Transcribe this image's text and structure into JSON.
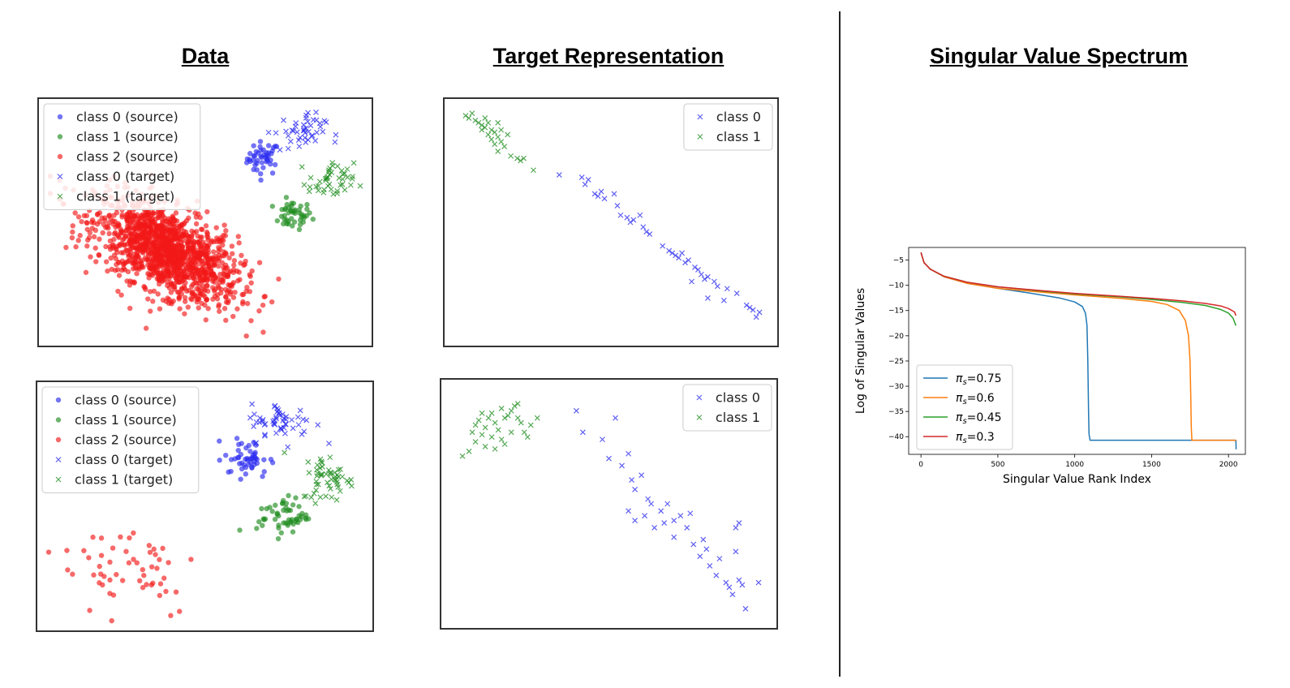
{
  "headings": {
    "data": "Data",
    "target_representation": "Target Representation",
    "spectrum": "Singular Value Spectrum"
  },
  "colors": {
    "blue": "#2a2af0",
    "green": "#1e8c1e",
    "red": "#f21818"
  },
  "chart_data": [
    {
      "id": "data-top",
      "type": "scatter",
      "legend": [
        "class 0 (source)",
        "class 1 (source)",
        "class 2 (source)",
        "class 0 (target)",
        "class 1 (target)"
      ],
      "legend_position": "top-left",
      "xlim": [
        0,
        100
      ],
      "ylim": [
        0,
        100
      ],
      "series": [
        {
          "name": "class 0 (source)",
          "marker": "o",
          "color": "#2a2af0",
          "cluster": {
            "center": [
              68,
              77
            ],
            "spread": [
              2.5,
              3.5
            ],
            "n": 45
          }
        },
        {
          "name": "class 1 (source)",
          "marker": "o",
          "color": "#1e8c1e",
          "cluster": {
            "center": [
              77,
              53
            ],
            "spread": [
              3,
              3
            ],
            "n": 45
          }
        },
        {
          "name": "class 2 (source)",
          "marker": "o",
          "color": "#f21818",
          "cluster": {
            "center": [
              38,
              38
            ],
            "spread": [
              11,
              9
            ],
            "n": 1400,
            "tilt": -0.55
          }
        },
        {
          "name": "class 0 (target)",
          "marker": "x",
          "color": "#2a2af0",
          "cluster": {
            "center": [
              79,
              88
            ],
            "spread": [
              4,
              4
            ],
            "n": 45
          }
        },
        {
          "name": "class 1 (target)",
          "marker": "x",
          "color": "#1e8c1e",
          "cluster": {
            "center": [
              89,
              67
            ],
            "spread": [
              3.5,
              4
            ],
            "n": 45
          }
        }
      ]
    },
    {
      "id": "data-bottom",
      "type": "scatter",
      "legend": [
        "class 0 (source)",
        "class 1 (source)",
        "class 2 (source)",
        "class 0 (target)",
        "class 1 (target)"
      ],
      "legend_position": "top-left",
      "xlim": [
        0,
        100
      ],
      "ylim": [
        0,
        100
      ],
      "series": [
        {
          "name": "class 0 (source)",
          "marker": "o",
          "color": "#2a2af0",
          "cluster": {
            "center": [
              63,
              70
            ],
            "spread": [
              3.5,
              4
            ],
            "n": 50
          }
        },
        {
          "name": "class 1 (source)",
          "marker": "o",
          "color": "#1e8c1e",
          "cluster": {
            "center": [
              74,
              46
            ],
            "spread": [
              4,
              4
            ],
            "n": 55
          }
        },
        {
          "name": "class 2 (source)",
          "marker": "o",
          "color": "#f21818",
          "cluster": {
            "center": [
              27,
              25
            ],
            "spread": [
              11,
              11
            ],
            "n": 55
          }
        },
        {
          "name": "class 0 (target)",
          "marker": "x",
          "color": "#2a2af0",
          "cluster": {
            "center": [
              74,
              85
            ],
            "spread": [
              5,
              4
            ],
            "n": 55
          }
        },
        {
          "name": "class 1 (target)",
          "marker": "x",
          "color": "#1e8c1e",
          "cluster": {
            "center": [
              88,
              62
            ],
            "spread": [
              4,
              5
            ],
            "n": 55
          }
        }
      ]
    },
    {
      "id": "target-top",
      "type": "scatter",
      "legend": [
        "class 0",
        "class 1"
      ],
      "legend_position": "top-right",
      "xlim": [
        0,
        100
      ],
      "ylim": [
        0,
        100
      ],
      "series": [
        {
          "name": "class 1",
          "marker": "x",
          "color": "#1e8c1e",
          "points": [
            [
              5,
              95
            ],
            [
              6,
              94
            ],
            [
              8,
              93
            ],
            [
              9,
              92
            ],
            [
              10,
              91
            ],
            [
              11,
              90
            ],
            [
              12,
              92
            ],
            [
              13,
              89
            ],
            [
              12,
              87
            ],
            [
              14,
              88
            ],
            [
              15,
              86
            ],
            [
              13,
              85
            ],
            [
              16,
              84
            ],
            [
              14,
              83
            ],
            [
              17,
              82
            ],
            [
              15,
              80
            ],
            [
              19,
              78
            ],
            [
              21,
              77
            ],
            [
              22,
              76
            ],
            [
              23,
              77
            ],
            [
              26,
              72
            ],
            [
              11,
              94
            ],
            [
              16,
              89
            ],
            [
              18,
              87
            ],
            [
              7,
              96
            ],
            [
              10,
              89
            ],
            [
              15,
              92
            ]
          ]
        },
        {
          "name": "class 0",
          "marker": "x",
          "color": "#2a2af0",
          "points": [
            [
              34,
              70
            ],
            [
              41,
              69
            ],
            [
              42,
              66
            ],
            [
              45,
              62
            ],
            [
              46,
              61
            ],
            [
              48,
              60
            ],
            [
              51,
              62
            ],
            [
              53,
              53
            ],
            [
              55,
              52
            ],
            [
              56,
              50
            ],
            [
              57,
              51
            ],
            [
              59,
              53
            ],
            [
              61,
              46
            ],
            [
              62,
              45
            ],
            [
              68,
              38
            ],
            [
              69,
              37
            ],
            [
              70,
              36
            ],
            [
              71,
              35
            ],
            [
              72,
              37
            ],
            [
              73,
              33
            ],
            [
              74,
              34
            ],
            [
              76,
              31
            ],
            [
              77,
              30
            ],
            [
              78,
              28
            ],
            [
              79,
              26
            ],
            [
              80,
              27
            ],
            [
              82,
              25
            ],
            [
              83,
              23
            ],
            [
              86,
              22
            ],
            [
              89,
              20
            ],
            [
              92,
              15
            ],
            [
              93,
              14
            ],
            [
              94,
              13
            ],
            [
              95,
              10
            ],
            [
              96,
              12
            ],
            [
              75,
              25
            ],
            [
              80,
              18
            ],
            [
              85,
              17
            ],
            [
              66,
              40
            ],
            [
              60,
              48
            ],
            [
              52,
              57
            ],
            [
              47,
              63
            ],
            [
              43,
              68
            ]
          ]
        }
      ]
    },
    {
      "id": "target-bottom",
      "type": "scatter",
      "legend": [
        "class 0",
        "class 1"
      ],
      "legend_position": "top-right",
      "xlim": [
        0,
        100
      ],
      "ylim": [
        0,
        100
      ],
      "series": [
        {
          "name": "class 1",
          "marker": "x",
          "color": "#1e8c1e",
          "points": [
            [
              5,
              70
            ],
            [
              7,
              72
            ],
            [
              8,
              80
            ],
            [
              9,
              83
            ],
            [
              10,
              85
            ],
            [
              11,
              79
            ],
            [
              12,
              82
            ],
            [
              13,
              86
            ],
            [
              14,
              88
            ],
            [
              15,
              84
            ],
            [
              16,
              81
            ],
            [
              17,
              77
            ],
            [
              18,
              75
            ],
            [
              19,
              87
            ],
            [
              20,
              89
            ],
            [
              21,
              91
            ],
            [
              22,
              86
            ],
            [
              23,
              84
            ],
            [
              24,
              80
            ],
            [
              25,
              78
            ],
            [
              9,
              76
            ],
            [
              12,
              74
            ],
            [
              15,
              73
            ],
            [
              18,
              86
            ],
            [
              20,
              80
            ],
            [
              26,
              83
            ],
            [
              28,
              86
            ],
            [
              11,
              88
            ],
            [
              14,
              78
            ],
            [
              17,
              90
            ],
            [
              22,
              92
            ]
          ]
        },
        {
          "name": "class 0",
          "marker": "x",
          "color": "#2a2af0",
          "points": [
            [
              40,
              89
            ],
            [
              42,
              80
            ],
            [
              48,
              77
            ],
            [
              52,
              86
            ],
            [
              54,
              66
            ],
            [
              57,
              60
            ],
            [
              50,
              69
            ],
            [
              56,
              71
            ],
            [
              58,
              56
            ],
            [
              60,
              62
            ],
            [
              62,
              52
            ],
            [
              56,
              47
            ],
            [
              58,
              43
            ],
            [
              61,
              45
            ],
            [
              63,
              50
            ],
            [
              64,
              40
            ],
            [
              66,
              47
            ],
            [
              67,
              42
            ],
            [
              68,
              50
            ],
            [
              70,
              43
            ],
            [
              70,
              36
            ],
            [
              72,
              45
            ],
            [
              74,
              40
            ],
            [
              75,
              46
            ],
            [
              76,
              33
            ],
            [
              78,
              28
            ],
            [
              79,
              35
            ],
            [
              80,
              31
            ],
            [
              81,
              24
            ],
            [
              83,
              20
            ],
            [
              84,
              27
            ],
            [
              86,
              17
            ],
            [
              87,
              15
            ],
            [
              88,
              12
            ],
            [
              89,
              30
            ],
            [
              89,
              40
            ],
            [
              90,
              18
            ],
            [
              90,
              42
            ],
            [
              91,
              16
            ],
            [
              96,
              17
            ],
            [
              92,
              6
            ]
          ]
        }
      ]
    },
    {
      "id": "spectrum",
      "type": "line",
      "xlabel": "Singular Value Rank Index",
      "ylabel": "Log of Singular Values",
      "xlim": [
        -80,
        2110
      ],
      "ylim": [
        -43.5,
        -2.5
      ],
      "xticks": [
        0,
        500,
        1000,
        1500,
        2000
      ],
      "xtick_labels": [
        "0",
        "500",
        "1000",
        "1500",
        "2000"
      ],
      "yticks": [
        -5,
        -10,
        -15,
        -20,
        -25,
        -30,
        -35,
        -40
      ],
      "ytick_labels": [
        "−5",
        "−10",
        "−15",
        "−20",
        "−25",
        "−30",
        "−35",
        "−40"
      ],
      "legend_position": "lower-left",
      "series": [
        {
          "name": "πs=0.75",
          "label_base": "π",
          "label_sub": "s",
          "label_value": "=0.75",
          "color": "#1f77b4",
          "x": [
            0,
            20,
            60,
            150,
            300,
            500,
            700,
            900,
            1000,
            1050,
            1070,
            1080,
            1085,
            1090,
            1093,
            1100,
            1500,
            2000,
            2048,
            2050
          ],
          "y": [
            -3.5,
            -5.5,
            -6.8,
            -8.3,
            -9.6,
            -10.6,
            -11.5,
            -12.5,
            -13.3,
            -14.2,
            -15.5,
            -18,
            -25,
            -35,
            -39.5,
            -40.7,
            -40.7,
            -40.7,
            -40.7,
            -42.5
          ]
        },
        {
          "name": "πs=0.6",
          "label_base": "π",
          "label_sub": "s",
          "label_value": "=0.6",
          "color": "#ff7f0e",
          "x": [
            0,
            20,
            60,
            150,
            300,
            500,
            800,
            1000,
            1300,
            1500,
            1600,
            1680,
            1720,
            1740,
            1750,
            1755,
            1758,
            1762,
            2000,
            2048,
            2050
          ],
          "y": [
            -3.5,
            -5.5,
            -6.8,
            -8.3,
            -9.6,
            -10.6,
            -11.4,
            -11.9,
            -12.6,
            -13.2,
            -13.8,
            -15,
            -17,
            -20,
            -25,
            -32,
            -38,
            -40.7,
            -40.7,
            -40.7,
            -40.8
          ]
        },
        {
          "name": "πs=0.45",
          "label_base": "π",
          "label_sub": "s",
          "label_value": "=0.45",
          "color": "#2ca02c",
          "x": [
            0,
            20,
            60,
            150,
            300,
            500,
            800,
            1000,
            1300,
            1500,
            1700,
            1850,
            1950,
            2000,
            2030,
            2048
          ],
          "y": [
            -3.5,
            -5.5,
            -6.8,
            -8.2,
            -9.4,
            -10.3,
            -11.2,
            -11.7,
            -12.3,
            -12.8,
            -13.4,
            -14,
            -14.8,
            -15.5,
            -16.5,
            -18
          ]
        },
        {
          "name": "πs=0.3",
          "label_base": "π",
          "label_sub": "s",
          "label_value": "=0.3",
          "color": "#d62728",
          "x": [
            0,
            20,
            60,
            150,
            300,
            500,
            800,
            1000,
            1300,
            1500,
            1700,
            1850,
            1950,
            2000,
            2040,
            2048
          ],
          "y": [
            -3.5,
            -5.5,
            -6.8,
            -8.2,
            -9.4,
            -10.3,
            -11.1,
            -11.6,
            -12.2,
            -12.6,
            -13.1,
            -13.6,
            -14.1,
            -14.6,
            -15.3,
            -16
          ]
        }
      ]
    }
  ]
}
